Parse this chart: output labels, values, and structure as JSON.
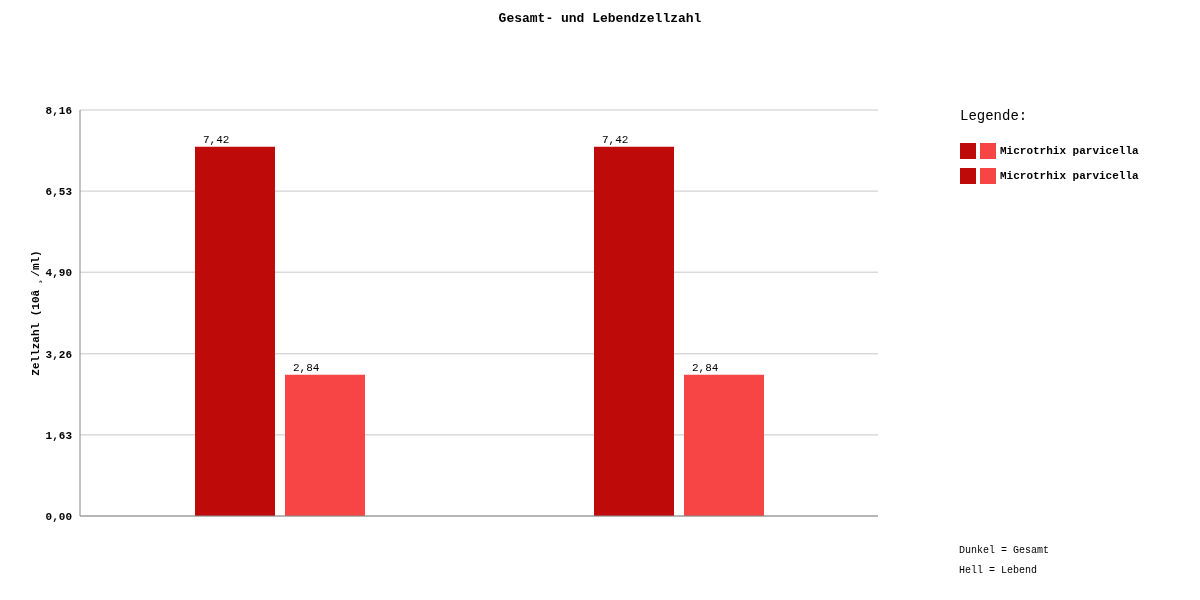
{
  "chart_data": {
    "type": "bar",
    "title": "Gesamt- und Lebendzellzahl",
    "ylabel": "Zellzahl (10â ¸/ml)",
    "legend_title": "Legende:",
    "categories": [
      null,
      null
    ],
    "series": [
      {
        "color": "#bf0a0a",
        "values": [
          7.42,
          7.42
        ],
        "value_labels": [
          "7,42",
          "7,42"
        ]
      },
      {
        "color": "#f74545",
        "values": [
          2.84,
          2.84
        ],
        "value_labels": [
          "2,84",
          "2,84"
        ]
      }
    ],
    "ylim": [
      0,
      8.16
    ],
    "yticks": [
      {
        "value": 0,
        "label": "0,00"
      },
      {
        "value": 1.63,
        "label": "1,63"
      },
      {
        "value": 3.26,
        "label": "3,26"
      },
      {
        "value": 4.9,
        "label": "4,90"
      },
      {
        "value": 6.53,
        "label": "6,53"
      },
      {
        "value": 8.16,
        "label": "8,16"
      }
    ],
    "grid": "y",
    "tick_labels": "y",
    "annotations": [
      "Microtrhix parvicella",
      "Microtrhix parvicella",
      "Dunkel = Gesamt",
      "Hell = Lebend"
    ]
  }
}
